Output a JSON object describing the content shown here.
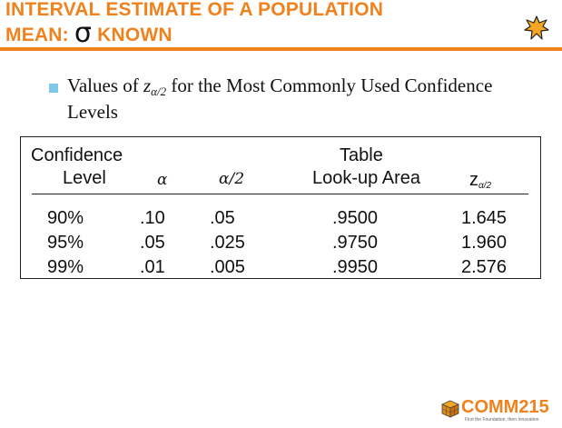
{
  "slide": {
    "title_line1": "INTERVAL ESTIMATE OF A POPULATION",
    "title_line2_prefix": "MEAN: ",
    "title_sigma": "σ",
    "title_line2_suffix": " KNOWN",
    "accent_color": "#F0821E"
  },
  "bullet": {
    "text_before": "Values of ",
    "z_symbol": "z",
    "z_subscript": "α/2",
    "text_after": " for the Most Commonly Used Confidence Levels",
    "bullet_color": "#7FC8E8"
  },
  "table": {
    "headers": {
      "confidence_line1": "Confidence",
      "confidence_line2": "Level",
      "alpha": "α",
      "alpha_half": "α/2",
      "lookup_line1": "Table",
      "lookup_line2": "Look-up Area",
      "z_symbol": "z",
      "z_subscript": "α/2"
    },
    "rows": [
      {
        "level": "90%",
        "alpha": ".10",
        "alpha_half": ".05",
        "area": ".9500",
        "z": "1.645"
      },
      {
        "level": "95%",
        "alpha": ".05",
        "alpha_half": ".025",
        "area": ".9750",
        "z": "1.960"
      },
      {
        "level": "99%",
        "alpha": ".01",
        "alpha_half": ".005",
        "area": ".9950",
        "z": "2.576"
      }
    ]
  },
  "logo": {
    "name": "COMM215",
    "tagline": "First the Foundation, then Innovation"
  }
}
